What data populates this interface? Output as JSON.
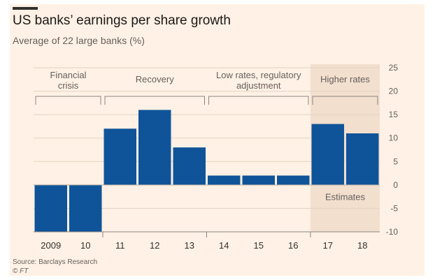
{
  "header": {
    "title": "US banks’ earnings per share growth",
    "subtitle": "Average of 22 large banks (%)"
  },
  "footer": {
    "source": "Source: Barclays Research",
    "credit": "© FT"
  },
  "chart_data": {
    "type": "bar",
    "title": "US banks’ earnings per share growth",
    "subtitle": "Average of 22 large banks (%)",
    "categories": [
      "2009",
      "10",
      "11",
      "12",
      "13",
      "14",
      "15",
      "16",
      "17",
      "18"
    ],
    "values": [
      -10,
      -10,
      12,
      16,
      8,
      2,
      2,
      2,
      13,
      11
    ],
    "ylim": [
      -10,
      25
    ],
    "yticks": [
      -10,
      -5,
      0,
      5,
      10,
      15,
      20,
      25
    ],
    "xlabel": "",
    "ylabel": "",
    "grid": true,
    "bar_color": "#0f5499",
    "periods": [
      {
        "label_lines": [
          "Financial",
          "crisis"
        ],
        "from": "2009",
        "to": "10"
      },
      {
        "label_lines": [
          "Recovery"
        ],
        "from": "11",
        "to": "13"
      },
      {
        "label_lines": [
          "Low rates, regulatory",
          "adjustment"
        ],
        "from": "14",
        "to": "16"
      },
      {
        "label_lines": [
          "Higher rates"
        ],
        "from": "17",
        "to": "18"
      }
    ],
    "shaded_region": {
      "from": "17",
      "to": "18",
      "label": "Estimates",
      "color": "#f2dfce"
    }
  }
}
